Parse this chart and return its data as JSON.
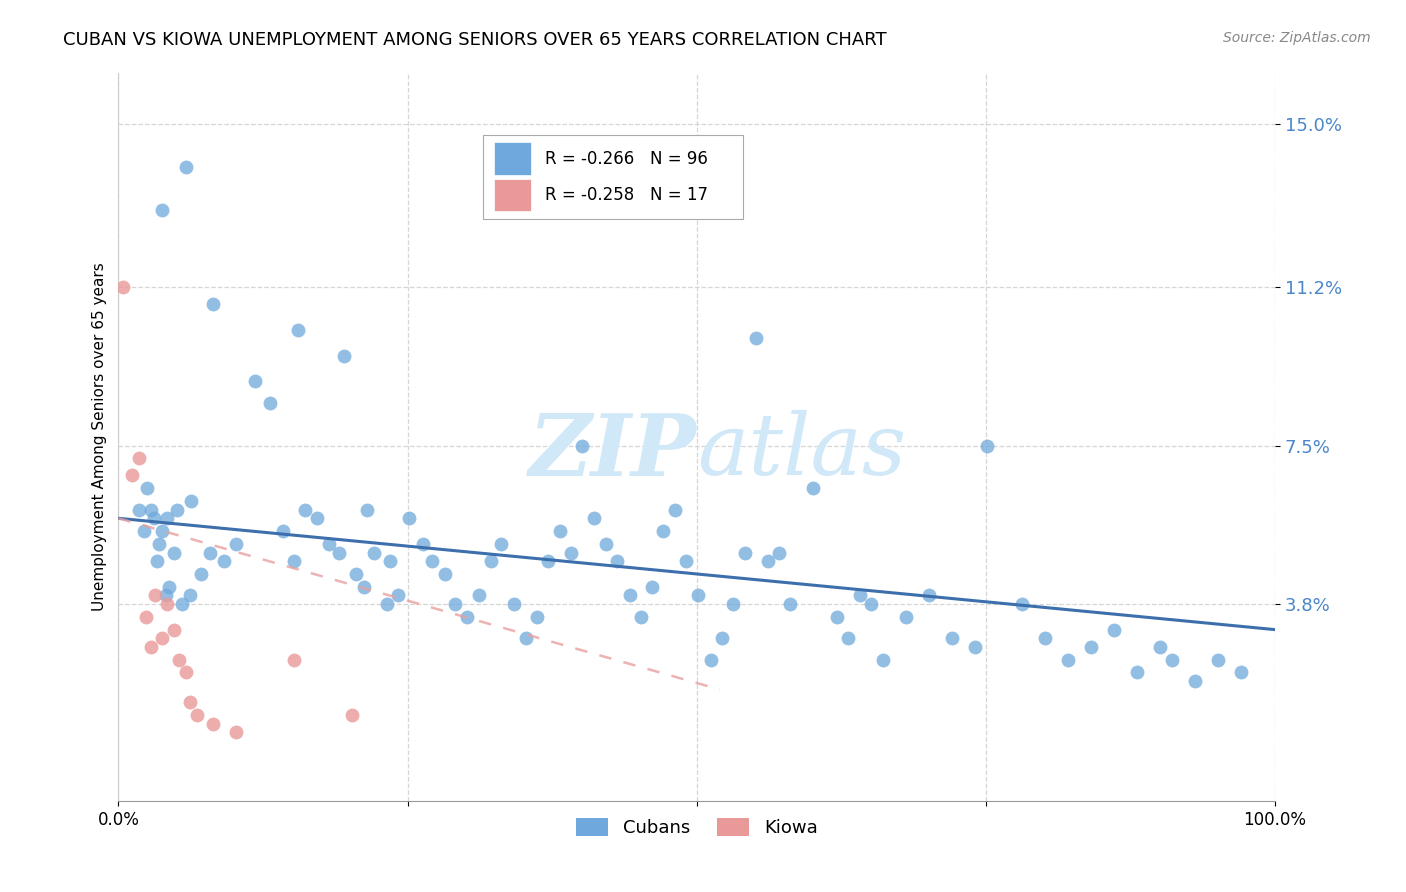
{
  "title": "CUBAN VS KIOWA UNEMPLOYMENT AMONG SENIORS OVER 65 YEARS CORRELATION CHART",
  "source": "Source: ZipAtlas.com",
  "ylabel": "Unemployment Among Seniors over 65 years",
  "xlim": [
    0.0,
    1.0
  ],
  "ylim": [
    -0.008,
    0.162
  ],
  "legend_cubans": "Cubans",
  "legend_kiowa": "Kiowa",
  "R_cubans": -0.266,
  "N_cubans": 96,
  "R_kiowa": -0.258,
  "N_kiowa": 17,
  "cubans_color": "#6fa8dc",
  "kiowa_color": "#ea9999",
  "trendline_cubans_color": "#3d6fad",
  "trendline_kiowa_color": "#cc4444",
  "trendline_kiowa_dash_color": "#e8a0a0",
  "watermark_color": "#d0e8f8",
  "ytick_vals": [
    0.038,
    0.075,
    0.112,
    0.15
  ],
  "ytick_labels": [
    "3.8%",
    "7.5%",
    "11.2%",
    "15.0%"
  ],
  "ytick_color": "#4a86c8",
  "cubans_x": [
    0.018,
    0.082,
    0.025,
    0.031,
    0.028,
    0.042,
    0.038,
    0.051,
    0.048,
    0.063,
    0.022,
    0.035,
    0.033,
    0.041,
    0.044,
    0.055,
    0.062,
    0.071,
    0.079,
    0.091,
    0.102,
    0.118,
    0.131,
    0.142,
    0.152,
    0.161,
    0.172,
    0.182,
    0.191,
    0.205,
    0.212,
    0.221,
    0.232,
    0.242,
    0.251,
    0.263,
    0.271,
    0.282,
    0.291,
    0.301,
    0.312,
    0.322,
    0.331,
    0.342,
    0.352,
    0.362,
    0.371,
    0.382,
    0.391,
    0.401,
    0.411,
    0.422,
    0.431,
    0.442,
    0.452,
    0.461,
    0.471,
    0.481,
    0.491,
    0.501,
    0.512,
    0.522,
    0.531,
    0.542,
    0.551,
    0.562,
    0.571,
    0.581,
    0.601,
    0.621,
    0.631,
    0.641,
    0.651,
    0.661,
    0.681,
    0.701,
    0.721,
    0.741,
    0.751,
    0.781,
    0.801,
    0.821,
    0.841,
    0.861,
    0.881,
    0.901,
    0.911,
    0.931,
    0.951,
    0.971,
    0.038,
    0.058,
    0.155,
    0.195,
    0.215,
    0.235
  ],
  "cubans_y": [
    0.06,
    0.108,
    0.065,
    0.058,
    0.06,
    0.058,
    0.055,
    0.06,
    0.05,
    0.062,
    0.055,
    0.052,
    0.048,
    0.04,
    0.042,
    0.038,
    0.04,
    0.045,
    0.05,
    0.048,
    0.052,
    0.09,
    0.085,
    0.055,
    0.048,
    0.06,
    0.058,
    0.052,
    0.05,
    0.045,
    0.042,
    0.05,
    0.038,
    0.04,
    0.058,
    0.052,
    0.048,
    0.045,
    0.038,
    0.035,
    0.04,
    0.048,
    0.052,
    0.038,
    0.03,
    0.035,
    0.048,
    0.055,
    0.05,
    0.075,
    0.058,
    0.052,
    0.048,
    0.04,
    0.035,
    0.042,
    0.055,
    0.06,
    0.048,
    0.04,
    0.025,
    0.03,
    0.038,
    0.05,
    0.1,
    0.048,
    0.05,
    0.038,
    0.065,
    0.035,
    0.03,
    0.04,
    0.038,
    0.025,
    0.035,
    0.04,
    0.03,
    0.028,
    0.075,
    0.038,
    0.03,
    0.025,
    0.028,
    0.032,
    0.022,
    0.028,
    0.025,
    0.02,
    0.025,
    0.022,
    0.13,
    0.14,
    0.102,
    0.096,
    0.06,
    0.048
  ],
  "kiowa_x": [
    0.004,
    0.012,
    0.018,
    0.024,
    0.028,
    0.032,
    0.038,
    0.042,
    0.048,
    0.052,
    0.058,
    0.062,
    0.068,
    0.082,
    0.102,
    0.152,
    0.202
  ],
  "kiowa_y": [
    0.112,
    0.068,
    0.072,
    0.035,
    0.028,
    0.04,
    0.03,
    0.038,
    0.032,
    0.025,
    0.022,
    0.015,
    0.012,
    0.01,
    0.008,
    0.025,
    0.012
  ],
  "cubans_trendline_x": [
    0.0,
    1.0
  ],
  "cubans_trendline_y_start": 0.058,
  "cubans_trendline_y_end": 0.032,
  "kiowa_trendline_x": [
    0.0,
    0.52
  ],
  "kiowa_trendline_y_start": 0.058,
  "kiowa_trendline_y_end": 0.018
}
